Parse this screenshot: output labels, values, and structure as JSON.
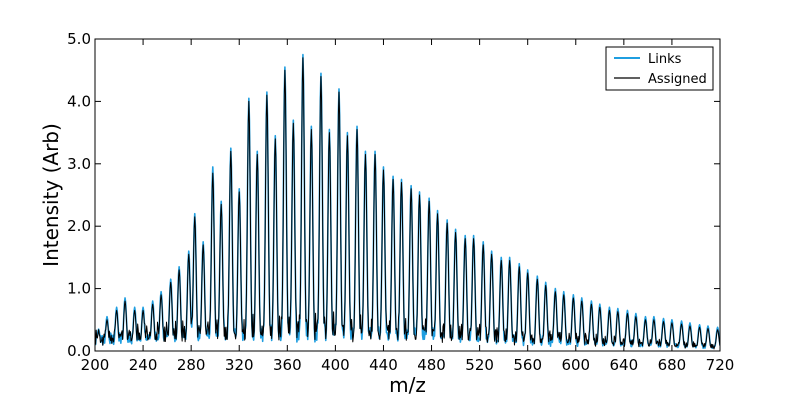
{
  "chart_data": {
    "type": "line",
    "title": "",
    "xlabel": "m/z",
    "ylabel": "Intensity (Arb)",
    "xlim": [
      200,
      720
    ],
    "ylim": [
      0.0,
      5.0
    ],
    "xticks": [
      200,
      240,
      280,
      320,
      360,
      400,
      440,
      480,
      520,
      560,
      600,
      640,
      680,
      720
    ],
    "yticks": [
      "0.0",
      "1.0",
      "2.0",
      "3.0",
      "4.0",
      "5.0"
    ],
    "grid": false,
    "legend_position": "top-right",
    "series": [
      {
        "name": "Links",
        "color": "#1f9ee0",
        "peak_spacing": 7.5,
        "peaks": [
          [
            203,
            0.35
          ],
          [
            210,
            0.55
          ],
          [
            218,
            0.7
          ],
          [
            225,
            0.85
          ],
          [
            233,
            0.7
          ],
          [
            240,
            0.7
          ],
          [
            248,
            0.8
          ],
          [
            255,
            0.95
          ],
          [
            263,
            1.15
          ],
          [
            270,
            1.35
          ],
          [
            278,
            1.6
          ],
          [
            283,
            2.2
          ],
          [
            290,
            1.75
          ],
          [
            298,
            2.95
          ],
          [
            305,
            2.4
          ],
          [
            313,
            3.25
          ],
          [
            320,
            2.6
          ],
          [
            328,
            4.05
          ],
          [
            335,
            3.2
          ],
          [
            343,
            4.15
          ],
          [
            350,
            3.45
          ],
          [
            358,
            4.55
          ],
          [
            365,
            3.7
          ],
          [
            373,
            4.75
          ],
          [
            380,
            3.6
          ],
          [
            388,
            4.45
          ],
          [
            395,
            3.55
          ],
          [
            403,
            4.2
          ],
          [
            410,
            3.5
          ],
          [
            418,
            3.6
          ],
          [
            425,
            3.2
          ],
          [
            433,
            3.2
          ],
          [
            440,
            2.95
          ],
          [
            448,
            2.8
          ],
          [
            455,
            2.75
          ],
          [
            463,
            2.65
          ],
          [
            470,
            2.55
          ],
          [
            478,
            2.45
          ],
          [
            485,
            2.25
          ],
          [
            493,
            2.1
          ],
          [
            500,
            1.95
          ],
          [
            508,
            1.85
          ],
          [
            515,
            1.85
          ],
          [
            523,
            1.75
          ],
          [
            530,
            1.6
          ],
          [
            538,
            1.5
          ],
          [
            545,
            1.5
          ],
          [
            553,
            1.4
          ],
          [
            560,
            1.3
          ],
          [
            568,
            1.2
          ],
          [
            575,
            1.1
          ],
          [
            583,
            1.0
          ],
          [
            590,
            0.95
          ],
          [
            598,
            0.9
          ],
          [
            605,
            0.85
          ],
          [
            613,
            0.8
          ],
          [
            620,
            0.75
          ],
          [
            628,
            0.7
          ],
          [
            635,
            0.68
          ],
          [
            643,
            0.65
          ],
          [
            650,
            0.6
          ],
          [
            658,
            0.55
          ],
          [
            665,
            0.55
          ],
          [
            673,
            0.52
          ],
          [
            680,
            0.5
          ],
          [
            688,
            0.48
          ],
          [
            695,
            0.45
          ],
          [
            703,
            0.42
          ],
          [
            710,
            0.4
          ],
          [
            718,
            0.38
          ]
        ]
      },
      {
        "name": "Assigned",
        "color": "#000000",
        "peak_spacing": 7.5,
        "peaks": [
          [
            203,
            0.3
          ],
          [
            210,
            0.5
          ],
          [
            218,
            0.65
          ],
          [
            225,
            0.8
          ],
          [
            233,
            0.65
          ],
          [
            240,
            0.65
          ],
          [
            248,
            0.75
          ],
          [
            255,
            0.9
          ],
          [
            263,
            1.1
          ],
          [
            270,
            1.3
          ],
          [
            278,
            1.55
          ],
          [
            283,
            2.15
          ],
          [
            290,
            1.7
          ],
          [
            298,
            2.85
          ],
          [
            305,
            2.35
          ],
          [
            313,
            3.2
          ],
          [
            320,
            2.55
          ],
          [
            328,
            4.0
          ],
          [
            335,
            3.15
          ],
          [
            343,
            4.1
          ],
          [
            350,
            3.4
          ],
          [
            358,
            4.5
          ],
          [
            365,
            3.65
          ],
          [
            373,
            4.7
          ],
          [
            380,
            3.55
          ],
          [
            388,
            4.4
          ],
          [
            395,
            3.5
          ],
          [
            403,
            4.15
          ],
          [
            410,
            3.45
          ],
          [
            418,
            3.55
          ],
          [
            425,
            3.15
          ],
          [
            433,
            3.15
          ],
          [
            440,
            2.9
          ],
          [
            448,
            2.75
          ],
          [
            455,
            2.7
          ],
          [
            463,
            2.6
          ],
          [
            470,
            2.5
          ],
          [
            478,
            2.4
          ],
          [
            485,
            2.2
          ],
          [
            493,
            2.05
          ],
          [
            500,
            1.9
          ],
          [
            508,
            1.8
          ],
          [
            515,
            1.8
          ],
          [
            523,
            1.7
          ],
          [
            530,
            1.55
          ],
          [
            538,
            1.45
          ],
          [
            545,
            1.45
          ],
          [
            553,
            1.35
          ],
          [
            560,
            1.25
          ],
          [
            568,
            1.15
          ],
          [
            575,
            1.05
          ],
          [
            583,
            0.95
          ],
          [
            590,
            0.9
          ],
          [
            598,
            0.85
          ],
          [
            605,
            0.8
          ],
          [
            613,
            0.75
          ],
          [
            620,
            0.7
          ],
          [
            628,
            0.65
          ],
          [
            635,
            0.63
          ],
          [
            643,
            0.6
          ],
          [
            650,
            0.55
          ],
          [
            658,
            0.5
          ],
          [
            665,
            0.5
          ],
          [
            673,
            0.47
          ],
          [
            680,
            0.45
          ],
          [
            688,
            0.43
          ],
          [
            695,
            0.4
          ],
          [
            703,
            0.38
          ],
          [
            710,
            0.36
          ],
          [
            718,
            0.34
          ]
        ]
      }
    ]
  }
}
